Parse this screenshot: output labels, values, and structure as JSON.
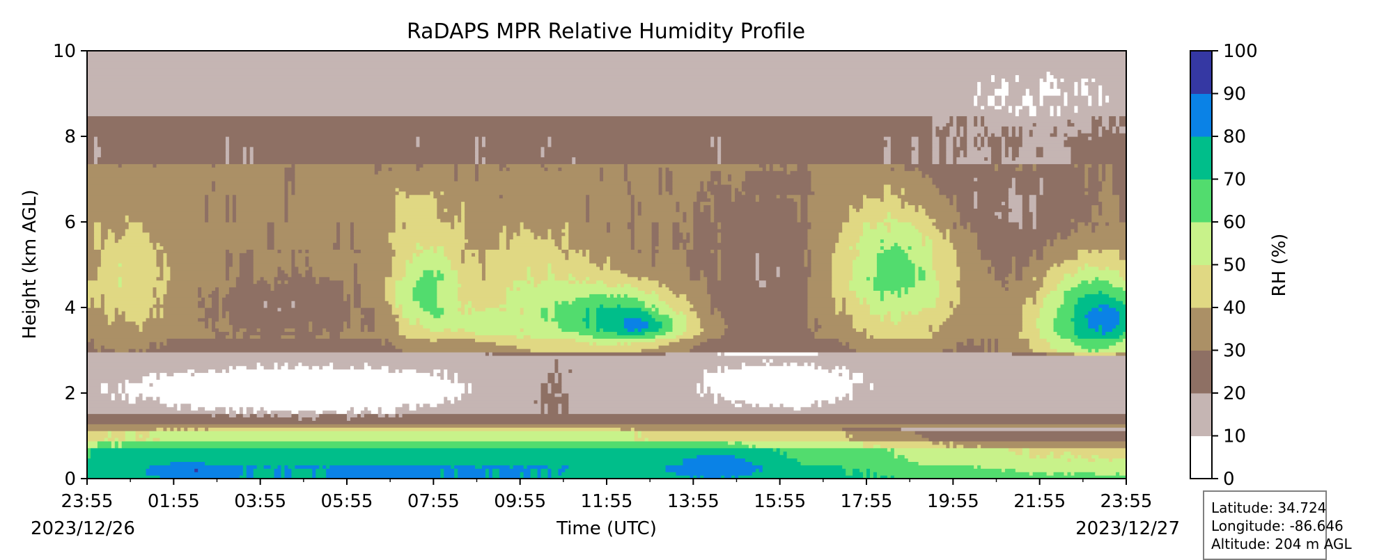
{
  "chart_data": {
    "type": "heatmap",
    "subtype": "filled-contour",
    "title": "RaDAPS MPR Relative Humidity Profile",
    "xlabel": "Time (UTC)",
    "ylabel": "Height (km AGL)",
    "x_tick_labels": [
      "23:55",
      "01:55",
      "03:55",
      "05:55",
      "07:55",
      "09:55",
      "11:55",
      "13:55",
      "15:55",
      "17:55",
      "19:55",
      "21:55",
      "23:55"
    ],
    "x_hours": [
      0,
      2,
      4,
      6,
      8,
      10,
      12,
      14,
      16,
      18,
      20,
      22,
      24
    ],
    "start_date": "2023/12/26",
    "end_date": "2023/12/27",
    "xlim_hours": [
      0,
      24
    ],
    "ylim": [
      0,
      10
    ],
    "y_ticks": [
      0,
      2,
      4,
      6,
      8,
      10
    ],
    "colorbar": {
      "label": "RH (%)",
      "levels": [
        0,
        10,
        20,
        30,
        40,
        50,
        60,
        70,
        80,
        90,
        100
      ],
      "colors": [
        "#ffffff",
        "#c5b5b3",
        "#8e7064",
        "#ab9066",
        "#e0d883",
        "#c8f28a",
        "#52dc6e",
        "#00be8a",
        "#0a82e6",
        "#3538a3"
      ]
    },
    "regions": [
      {
        "level_index": 0,
        "rh_range": [
          0,
          10
        ],
        "description": "dry layer",
        "t": [
          0.6,
          5.0,
          9.5,
          10.8,
          14.8,
          16.6
        ],
        "h_center": 2.1
      },
      {
        "level_index": 8,
        "rh_range": [
          80,
          90
        ],
        "t_range": [
          12.0,
          13.0
        ],
        "h_range": [
          3.4,
          3.6
        ]
      },
      {
        "level_index": 8,
        "rh_range": [
          80,
          90
        ],
        "t_range": [
          14.0,
          15.3
        ],
        "h_range": [
          0.1,
          0.6
        ]
      },
      {
        "level_index": 9,
        "rh_range": [
          90,
          100
        ],
        "t_range": [
          23.3,
          24.0
        ],
        "h_range": [
          3.3,
          4.0
        ]
      }
    ],
    "grid": false
  },
  "info": {
    "latitude": "Latitude: 34.724",
    "longitude": "Longitude: -86.646",
    "altitude": "Altitude: 204 m AGL"
  }
}
